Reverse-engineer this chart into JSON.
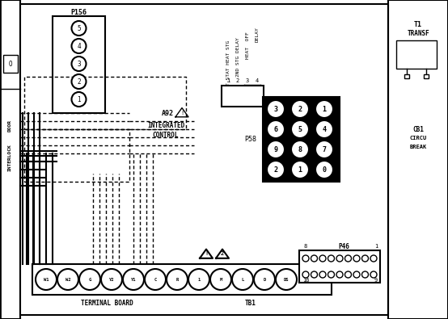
{
  "background_color": "#ffffff",
  "line_color": "#000000",
  "fig_width": 5.54,
  "fig_height": 3.95,
  "dpi": 100,
  "p156_label": "P156",
  "p156_nums": [
    "5",
    "4",
    "3",
    "2",
    "1"
  ],
  "a92_label1": "A92",
  "a92_label2": "INTEGRATED",
  "a92_label3": "CONTROL",
  "relay_labels": [
    "T-STAT HEAT STG",
    "2ND STG DELAY",
    "HEAT  OFF",
    "DELAY"
  ],
  "pin_nums": [
    "1",
    "2",
    "3",
    "4"
  ],
  "p58_label": "P58",
  "p58_nums": [
    [
      "3",
      "2",
      "1"
    ],
    [
      "6",
      "5",
      "4"
    ],
    [
      "9",
      "8",
      "7"
    ],
    [
      "2",
      "1",
      "0"
    ]
  ],
  "tb1_labels": [
    "W1",
    "W2",
    "G",
    "Y2",
    "Y1",
    "C",
    "R",
    "1",
    "M",
    "L",
    "D",
    "DS"
  ],
  "tb1_label": "TERMINAL BOARD",
  "tb1_name": "TB1",
  "p46_label": "P46",
  "t1_label1": "T1",
  "t1_label2": "TRANSF",
  "cb_label1": "CB1",
  "cb_label2": "CIRCU",
  "cb_label3": "BREAK",
  "interlock_label": "INTERLOCK",
  "door_label": "DOOR"
}
